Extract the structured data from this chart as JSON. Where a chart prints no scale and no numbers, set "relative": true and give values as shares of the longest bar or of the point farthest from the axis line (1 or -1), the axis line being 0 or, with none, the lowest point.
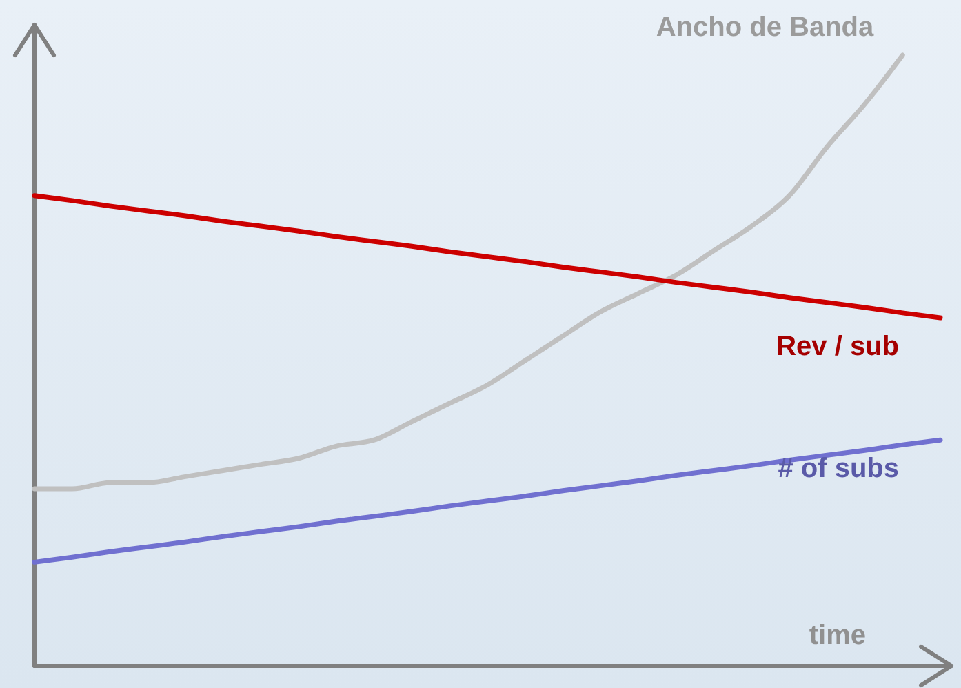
{
  "chart_data": {
    "type": "line",
    "relative": true,
    "xlabel": "time",
    "legend": false,
    "marker": "none",
    "line_style": "solid",
    "categories": [
      null,
      null,
      null,
      null,
      null,
      null,
      null,
      null,
      null,
      null,
      null,
      null,
      null,
      null,
      null,
      null,
      null,
      null,
      null,
      null,
      null,
      null,
      null,
      null,
      null
    ],
    "series": [
      {
        "name": "Ancho de Banda",
        "color": "#c0c0c0",
        "values": [
          0.29,
          0.29,
          0.3,
          0.3,
          0.31,
          0.32,
          0.33,
          0.34,
          0.36,
          0.37,
          0.4,
          0.43,
          0.46,
          0.5,
          0.54,
          0.58,
          0.61,
          0.64,
          0.68,
          0.72,
          0.77,
          0.85,
          0.92,
          1,
          null
        ]
      },
      {
        "name": "Rev / sub",
        "color": "#cc0000",
        "values": [
          0.77,
          0.762,
          0.753,
          0.745,
          0.737,
          0.728,
          0.72,
          0.712,
          0.703,
          0.695,
          0.687,
          0.678,
          0.67,
          0.662,
          0.653,
          0.645,
          0.637,
          0.628,
          0.62,
          0.612,
          0.603,
          0.595,
          0.587,
          0.578,
          0.57
        ]
      },
      {
        "name": "# of subs",
        "color": "#7070d0",
        "values": [
          0.17,
          0.178,
          0.187,
          0.195,
          0.203,
          0.212,
          0.22,
          0.228,
          0.237,
          0.245,
          0.253,
          0.262,
          0.27,
          0.278,
          0.287,
          0.295,
          0.303,
          0.312,
          0.32,
          0.328,
          0.337,
          0.345,
          0.353,
          0.362,
          0.37
        ]
      }
    ]
  }
}
